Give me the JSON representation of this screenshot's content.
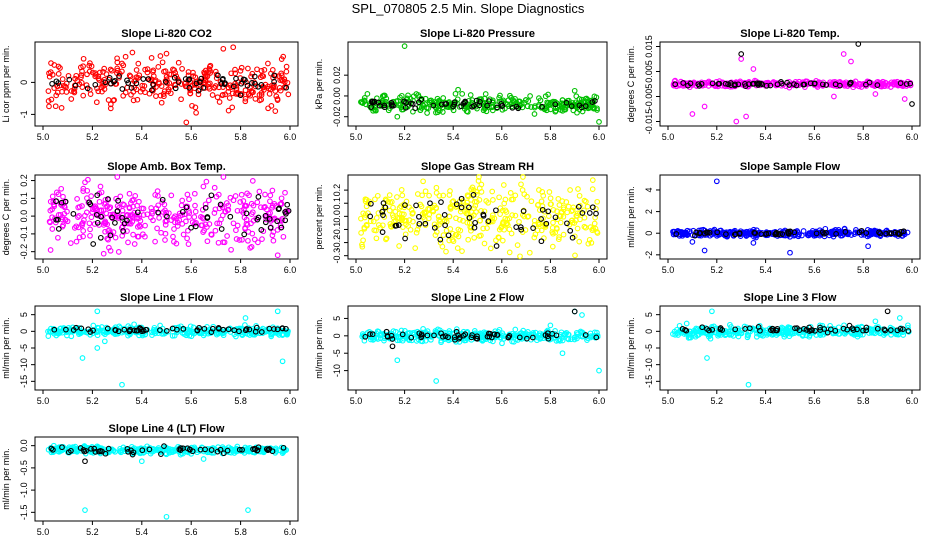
{
  "page": {
    "title": "SPL_070805  2.5 Min. Slope Diagnostics"
  },
  "chart_data": [
    {
      "type": "scatter",
      "title": "Slope Li-820 CO2",
      "xlabel": "",
      "ylabel": "Li cor ppm per min.",
      "xlim": [
        5.0,
        6.0
      ],
      "ylim": [
        -1.3,
        1.2
      ],
      "xticks": [
        "5.0",
        "5.2",
        "5.4",
        "5.6",
        "5.8",
        "6.0"
      ],
      "yticks": [
        "-1",
        "0"
      ],
      "series": [
        {
          "color": "#ff0000",
          "n": 340,
          "center": 0.0,
          "spread": 0.35,
          "outliers": [
            [
              5.58,
              -1.25
            ],
            [
              5.73,
              1.05
            ],
            [
              5.77,
              1.1
            ],
            [
              5.62,
              -0.95
            ],
            [
              5.5,
              0.9
            ]
          ]
        },
        {
          "color": "#000000",
          "n": 55,
          "center": 0.0,
          "spread": 0.12,
          "outliers": [
            [
              5.8,
              -0.4
            ]
          ]
        }
      ]
    },
    {
      "type": "scatter",
      "title": "Slope Li-820 Pressure",
      "xlabel": "",
      "ylabel": "kPa per min.",
      "xlim": [
        5.0,
        6.0
      ],
      "ylim": [
        -0.027,
        0.05
      ],
      "xticks": [
        "5.0",
        "5.2",
        "5.4",
        "5.6",
        "5.8",
        "6.0"
      ],
      "yticks": [
        "-0.02",
        "0.00",
        "0.02"
      ],
      "series": [
        {
          "color": "#00c000",
          "n": 330,
          "center": -0.008,
          "spread": 0.004,
          "outliers": [
            [
              5.2,
              0.048
            ],
            [
              6.0,
              -0.025
            ],
            [
              5.17,
              -0.02
            ],
            [
              5.42,
              0.006
            ],
            [
              5.9,
              0.005
            ]
          ]
        },
        {
          "color": "#000000",
          "n": 55,
          "center": -0.008,
          "spread": 0.002,
          "outliers": []
        }
      ]
    },
    {
      "type": "scatter",
      "title": "Slope Li-820 Temp.",
      "xlabel": "",
      "ylabel": "degrees C per min.",
      "xlim": [
        5.0,
        6.0
      ],
      "ylim": [
        -0.016,
        0.016
      ],
      "xticks": [
        "5.0",
        "5.2",
        "5.4",
        "5.6",
        "5.8",
        "6.0"
      ],
      "yticks": [
        "-0.015",
        "-0.005",
        "0.005",
        "0.015"
      ],
      "series": [
        {
          "color": "#ff00ff",
          "n": 300,
          "center": 0.0,
          "spread": 0.0006,
          "outliers": [
            [
              5.1,
              -0.012
            ],
            [
              5.15,
              -0.009
            ],
            [
              5.28,
              -0.015
            ],
            [
              5.32,
              -0.013
            ],
            [
              5.3,
              0.01
            ],
            [
              5.35,
              0.006
            ],
            [
              5.72,
              0.012
            ],
            [
              5.75,
              0.009
            ],
            [
              5.68,
              -0.005
            ],
            [
              5.85,
              -0.004
            ],
            [
              5.97,
              -0.006
            ]
          ]
        },
        {
          "color": "#000000",
          "n": 55,
          "center": 0.0,
          "spread": 0.0004,
          "outliers": [
            [
              5.3,
              0.012
            ],
            [
              5.78,
              0.016
            ],
            [
              6.0,
              -0.008
            ]
          ]
        }
      ]
    },
    {
      "type": "scatter",
      "title": "Slope Amb. Box Temp.",
      "xlabel": "",
      "ylabel": "degrees C per min.",
      "xlim": [
        5.0,
        6.0
      ],
      "ylim": [
        -0.23,
        0.22
      ],
      "xticks": [
        "5.0",
        "5.2",
        "5.4",
        "5.6",
        "5.8",
        "6.0"
      ],
      "yticks": [
        "-0.2",
        "-0.1",
        "0.0",
        "0.1",
        "0.2"
      ],
      "series": [
        {
          "color": "#ff00ff",
          "n": 380,
          "center": 0.0,
          "spread": 0.08,
          "outliers": [
            [
              5.17,
              0.19
            ],
            [
              5.95,
              -0.22
            ]
          ]
        },
        {
          "color": "#000000",
          "n": 60,
          "center": 0.0,
          "spread": 0.06,
          "outliers": []
        }
      ]
    },
    {
      "type": "scatter",
      "title": "Slope Gas Stream RH",
      "xlabel": "",
      "ylabel": "percent per min.",
      "xlim": [
        5.0,
        6.0
      ],
      "ylim": [
        -0.31,
        0.3
      ],
      "xticks": [
        "5.0",
        "5.2",
        "5.4",
        "5.6",
        "5.8",
        "6.0"
      ],
      "yticks": [
        "-0.3",
        "-0.2",
        "-0.1",
        "0.0",
        "0.1",
        "0.2"
      ],
      "series": [
        {
          "color": "#ffff00",
          "n": 380,
          "center": 0.0,
          "spread": 0.12,
          "outliers": []
        },
        {
          "color": "#000000",
          "n": 55,
          "center": 0.0,
          "spread": 0.1,
          "outliers": []
        }
      ]
    },
    {
      "type": "scatter",
      "title": "Slope Sample Flow",
      "xlabel": "",
      "ylabel": "ml/min per min.",
      "xlim": [
        5.0,
        6.0
      ],
      "ylim": [
        -2.2,
        5.2
      ],
      "xticks": [
        "5.0",
        "5.2",
        "5.4",
        "5.6",
        "5.8",
        "6.0"
      ],
      "yticks": [
        "-2",
        "0",
        "2",
        "4"
      ],
      "series": [
        {
          "color": "#0000ff",
          "n": 340,
          "center": 0.0,
          "spread": 0.15,
          "outliers": [
            [
              5.2,
              4.8
            ],
            [
              5.15,
              -1.6
            ],
            [
              5.5,
              -1.8
            ],
            [
              5.82,
              -1.2
            ],
            [
              5.1,
              -0.8
            ],
            [
              5.35,
              -0.9
            ]
          ]
        },
        {
          "color": "#000000",
          "n": 55,
          "center": 0.0,
          "spread": 0.1,
          "outliers": []
        }
      ]
    },
    {
      "type": "scatter",
      "title": "Slope Line 1 Flow",
      "xlabel": "",
      "ylabel": "ml/min per min.",
      "xlim": [
        5.0,
        6.0
      ],
      "ylim": [
        -17,
        7
      ],
      "xticks": [
        "5.0",
        "5.2",
        "5.4",
        "5.6",
        "5.8",
        "6.0"
      ],
      "yticks": [
        "-15",
        "-10",
        "-5",
        "0",
        "5"
      ],
      "series": [
        {
          "color": "#00ffff",
          "n": 340,
          "center": 0.0,
          "spread": 0.7,
          "outliers": [
            [
              5.22,
              6
            ],
            [
              5.32,
              -16
            ],
            [
              5.16,
              -8
            ],
            [
              5.22,
              -5
            ],
            [
              5.97,
              -9
            ],
            [
              5.95,
              6
            ],
            [
              5.82,
              4
            ],
            [
              5.25,
              -3
            ]
          ]
        },
        {
          "color": "#000000",
          "n": 55,
          "center": 0.5,
          "spread": 0.3,
          "outliers": []
        }
      ]
    },
    {
      "type": "scatter",
      "title": "Slope Line 2 Flow",
      "xlabel": "",
      "ylabel": "ml/min per min.",
      "xlim": [
        5.0,
        6.0
      ],
      "ylim": [
        -15,
        8
      ],
      "xticks": [
        "5.0",
        "5.2",
        "5.4",
        "5.6",
        "5.8",
        "6.0"
      ],
      "yticks": [
        "-10",
        "-5",
        "0",
        "5"
      ],
      "series": [
        {
          "color": "#00ffff",
          "n": 340,
          "center": 0.0,
          "spread": 0.8,
          "outliers": [
            [
              5.33,
              -13
            ],
            [
              5.17,
              -7
            ],
            [
              5.9,
              7
            ],
            [
              5.93,
              6
            ],
            [
              6.0,
              -10
            ],
            [
              5.85,
              -5
            ],
            [
              5.8,
              3
            ]
          ]
        },
        {
          "color": "#000000",
          "n": 55,
          "center": 0.0,
          "spread": 0.6,
          "outliers": [
            [
              5.9,
              7
            ],
            [
              5.15,
              -3
            ]
          ]
        }
      ]
    },
    {
      "type": "scatter",
      "title": "Slope Line 3 Flow",
      "xlabel": "",
      "ylabel": "ml/min per min.",
      "xlim": [
        5.0,
        6.0
      ],
      "ylim": [
        -17,
        7
      ],
      "xticks": [
        "5.0",
        "5.2",
        "5.4",
        "5.6",
        "5.8",
        "6.0"
      ],
      "yticks": [
        "-15",
        "-10",
        "-5",
        "0",
        "5"
      ],
      "series": [
        {
          "color": "#00ffff",
          "n": 340,
          "center": 0.0,
          "spread": 0.8,
          "outliers": [
            [
              5.33,
              -16
            ],
            [
              5.18,
              6
            ],
            [
              5.16,
              -8
            ],
            [
              5.95,
              4
            ],
            [
              5.85,
              3
            ]
          ]
        },
        {
          "color": "#000000",
          "n": 55,
          "center": 0.5,
          "spread": 0.4,
          "outliers": [
            [
              5.9,
              6
            ]
          ]
        }
      ]
    },
    {
      "type": "scatter",
      "title": "Slope Line 4 (LT) Flow",
      "xlabel": "",
      "ylabel": "ml/min per min.",
      "xlim": [
        5.0,
        6.0
      ],
      "ylim": [
        -1.65,
        0.15
      ],
      "xticks": [
        "5.0",
        "5.2",
        "5.4",
        "5.6",
        "5.8",
        "6.0"
      ],
      "yticks": [
        "-1.5",
        "-1.0",
        "-0.5",
        "0.0"
      ],
      "series": [
        {
          "color": "#00ffff",
          "n": 340,
          "center": -0.1,
          "spread": 0.04,
          "outliers": [
            [
              5.17,
              -1.45
            ],
            [
              5.5,
              -1.6
            ],
            [
              5.83,
              -1.45
            ],
            [
              5.4,
              -0.35
            ],
            [
              5.65,
              -0.3
            ]
          ]
        },
        {
          "color": "#000000",
          "n": 55,
          "center": -0.1,
          "spread": 0.04,
          "outliers": [
            [
              5.17,
              -0.35
            ]
          ]
        }
      ]
    }
  ]
}
